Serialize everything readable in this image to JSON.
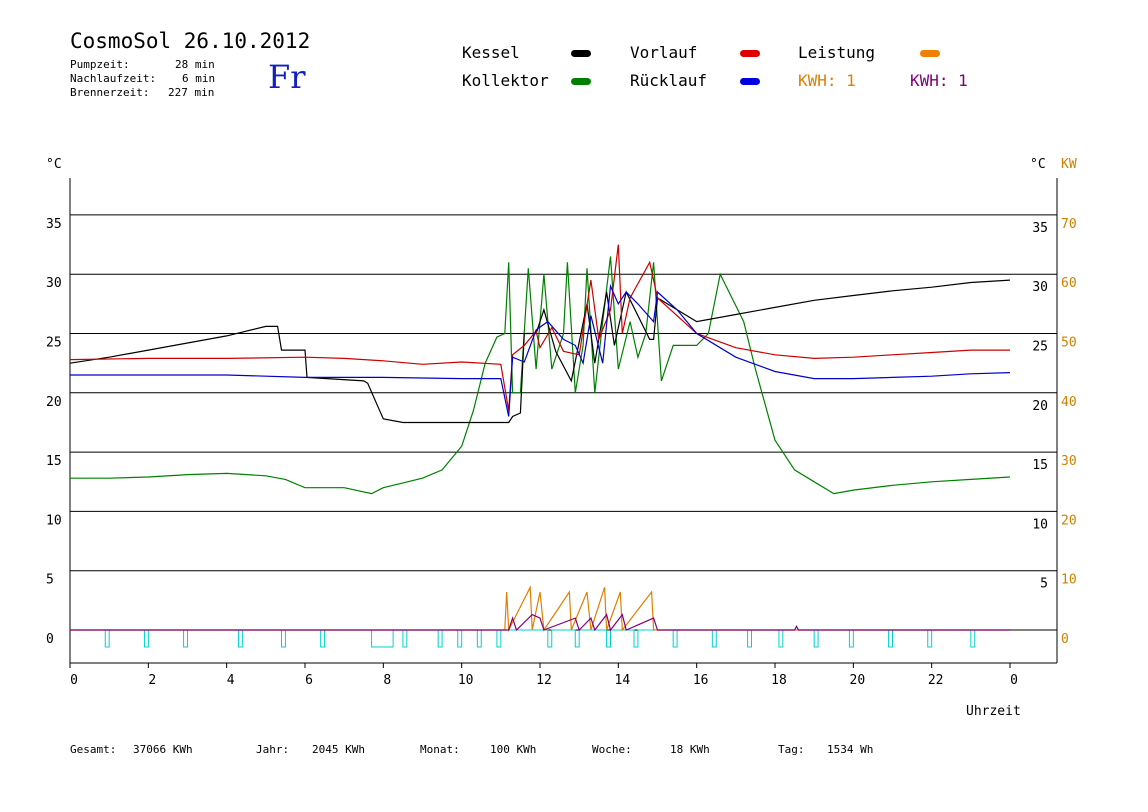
{
  "header": {
    "title": "CosmoSol 26.10.2012",
    "day": "Fr",
    "stats": [
      {
        "label": "Pumpzeit:",
        "value": "28 min"
      },
      {
        "label": "Nachlaufzeit:",
        "value": "6 min"
      },
      {
        "label": "Brennerzeit:",
        "value": "227 min"
      }
    ]
  },
  "legend": {
    "kessel": {
      "label": "Kessel",
      "color": "#000000"
    },
    "vorlauf": {
      "label": "Vorlauf",
      "color": "#e00000"
    },
    "leistung": {
      "label": "Leistung",
      "color": "#f08000"
    },
    "kollektor": {
      "label": "Kollektor",
      "color": "#008000"
    },
    "ruecklauf": {
      "label": "Rücklauf",
      "color": "#0000e0"
    },
    "kwh1": {
      "label": "KWH: 1",
      "color": "#e08000"
    },
    "kwh2": {
      "label": "KWH: 1",
      "color": "#800080"
    }
  },
  "footer": {
    "gesamt": {
      "label": "Gesamt:",
      "value": "37066 KWh"
    },
    "jahr": {
      "label": "Jahr:",
      "value": "2045 KWh"
    },
    "monat": {
      "label": "Monat:",
      "value": "100 KWh"
    },
    "woche": {
      "label": "Woche:",
      "value": "18 KWh"
    },
    "tag": {
      "label": "Tag:",
      "value": "1534 Wh"
    }
  },
  "chart_data": {
    "type": "line",
    "xlabel": "Uhrzeit",
    "ylabel_left": "°C",
    "ylabel_right": "°C",
    "ylabel_right2": "KW",
    "xlim": [
      0,
      24
    ],
    "ylim": [
      -2.5,
      38
    ],
    "grid": "horizontal",
    "x_ticks": [
      "0",
      "2",
      "4",
      "6",
      "8",
      "10",
      "12",
      "14",
      "16",
      "18",
      "20",
      "22",
      "0"
    ],
    "y_ticks_left": [
      0,
      5,
      10,
      15,
      20,
      25,
      30,
      35
    ],
    "y_ticks_right": [
      5,
      10,
      15,
      20,
      25,
      30,
      35
    ],
    "y_ticks_kw": [
      0,
      10,
      20,
      30,
      40,
      50,
      60,
      70
    ],
    "series": [
      {
        "name": "Kessel",
        "color": "#000000",
        "points": [
          [
            0,
            22.5
          ],
          [
            1,
            23
          ],
          [
            2,
            23.6
          ],
          [
            3,
            24.2
          ],
          [
            4,
            24.8
          ],
          [
            5,
            25.6
          ],
          [
            5.3,
            25.6
          ],
          [
            5.4,
            23.6
          ],
          [
            6,
            23.6
          ],
          [
            6.05,
            21.3
          ],
          [
            7.5,
            21
          ],
          [
            7.6,
            20.8
          ],
          [
            8,
            17.8
          ],
          [
            8.5,
            17.5
          ],
          [
            10,
            17.5
          ],
          [
            11.2,
            17.5
          ],
          [
            11.3,
            18
          ],
          [
            11.5,
            18.3
          ],
          [
            11.6,
            25
          ],
          [
            11.9,
            25
          ],
          [
            12.1,
            27
          ],
          [
            12.4,
            23.5
          ],
          [
            12.8,
            21
          ],
          [
            13.2,
            27.5
          ],
          [
            13.4,
            22.5
          ],
          [
            13.7,
            28.5
          ],
          [
            13.9,
            24
          ],
          [
            14.2,
            28.5
          ],
          [
            14.8,
            24.5
          ],
          [
            14.9,
            24.5
          ],
          [
            15,
            28
          ],
          [
            16,
            26
          ],
          [
            17,
            26.6
          ],
          [
            18,
            27.2
          ],
          [
            19,
            27.8
          ],
          [
            20,
            28.2
          ],
          [
            21,
            28.6
          ],
          [
            22,
            28.9
          ],
          [
            23,
            29.3
          ],
          [
            24,
            29.5
          ]
        ]
      },
      {
        "name": "Vorlauf",
        "color": "#cc0000",
        "points": [
          [
            0,
            22.8
          ],
          [
            2,
            22.9
          ],
          [
            4,
            22.9
          ],
          [
            6,
            23
          ],
          [
            7,
            22.9
          ],
          [
            8,
            22.7
          ],
          [
            9,
            22.4
          ],
          [
            10,
            22.6
          ],
          [
            11,
            22.4
          ],
          [
            11.2,
            18.5
          ],
          [
            11.3,
            23.2
          ],
          [
            11.6,
            24
          ],
          [
            11.9,
            25.2
          ],
          [
            12,
            23.8
          ],
          [
            12.3,
            25.5
          ],
          [
            12.6,
            23.5
          ],
          [
            13.0,
            23.2
          ],
          [
            13.3,
            29.5
          ],
          [
            13.5,
            24.5
          ],
          [
            13.8,
            27
          ],
          [
            14.0,
            32.5
          ],
          [
            14.1,
            25
          ],
          [
            14.3,
            28
          ],
          [
            14.8,
            31
          ],
          [
            15,
            28
          ],
          [
            16,
            25
          ],
          [
            17,
            23.8
          ],
          [
            18,
            23.2
          ],
          [
            19,
            22.9
          ],
          [
            20,
            23
          ],
          [
            21,
            23.2
          ],
          [
            22,
            23.4
          ],
          [
            23,
            23.6
          ],
          [
            24,
            23.6
          ]
        ]
      },
      {
        "name": "Rücklauf",
        "color": "#0000cc",
        "points": [
          [
            0,
            21.5
          ],
          [
            2,
            21.5
          ],
          [
            4,
            21.5
          ],
          [
            6,
            21.3
          ],
          [
            8,
            21.3
          ],
          [
            10,
            21.2
          ],
          [
            11,
            21.2
          ],
          [
            11.2,
            18
          ],
          [
            11.3,
            23
          ],
          [
            11.6,
            22.6
          ],
          [
            11.9,
            25.3
          ],
          [
            12.2,
            26
          ],
          [
            12.6,
            24.5
          ],
          [
            12.9,
            24
          ],
          [
            13.1,
            22.5
          ],
          [
            13.3,
            26.5
          ],
          [
            13.6,
            22.5
          ],
          [
            13.8,
            29
          ],
          [
            14,
            27.5
          ],
          [
            14.2,
            28.5
          ],
          [
            14.5,
            27.5
          ],
          [
            14.9,
            26
          ],
          [
            15,
            28.5
          ],
          [
            15.5,
            27
          ],
          [
            16,
            25
          ],
          [
            17,
            23
          ],
          [
            18,
            21.8
          ],
          [
            19,
            21.2
          ],
          [
            20,
            21.2
          ],
          [
            21,
            21.3
          ],
          [
            22,
            21.4
          ],
          [
            23,
            21.6
          ],
          [
            24,
            21.7
          ]
        ]
      },
      {
        "name": "Kollektor",
        "color": "#008000",
        "points": [
          [
            0,
            12.8
          ],
          [
            1,
            12.8
          ],
          [
            2,
            12.9
          ],
          [
            3,
            13.1
          ],
          [
            4,
            13.2
          ],
          [
            5,
            13
          ],
          [
            5.5,
            12.7
          ],
          [
            6,
            12
          ],
          [
            7,
            12
          ],
          [
            7.7,
            11.5
          ],
          [
            8,
            12
          ],
          [
            9,
            12.8
          ],
          [
            9.5,
            13.5
          ],
          [
            10,
            15.5
          ],
          [
            10.3,
            18.5
          ],
          [
            10.6,
            22.5
          ],
          [
            10.9,
            24.7
          ],
          [
            11.1,
            25
          ],
          [
            11.2,
            31
          ],
          [
            11.3,
            20
          ],
          [
            11.5,
            20
          ],
          [
            11.7,
            30.5
          ],
          [
            11.9,
            22
          ],
          [
            12.1,
            30
          ],
          [
            12.3,
            22
          ],
          [
            12.6,
            25
          ],
          [
            12.7,
            31
          ],
          [
            12.9,
            20
          ],
          [
            13.1,
            24
          ],
          [
            13.2,
            30.5
          ],
          [
            13.4,
            20
          ],
          [
            13.6,
            26
          ],
          [
            13.8,
            31.5
          ],
          [
            14,
            22
          ],
          [
            14.3,
            26
          ],
          [
            14.5,
            23
          ],
          [
            14.7,
            25
          ],
          [
            14.9,
            31
          ],
          [
            15.1,
            21
          ],
          [
            15.4,
            24
          ],
          [
            16,
            24
          ],
          [
            16.3,
            25
          ],
          [
            16.6,
            30
          ],
          [
            16.9,
            28
          ],
          [
            17.2,
            26
          ],
          [
            17.5,
            22
          ],
          [
            18,
            16
          ],
          [
            18.5,
            13.5
          ],
          [
            19,
            12.5
          ],
          [
            19.5,
            11.5
          ],
          [
            20,
            11.8
          ],
          [
            21,
            12.2
          ],
          [
            22,
            12.5
          ],
          [
            23,
            12.7
          ],
          [
            24,
            12.9
          ]
        ]
      },
      {
        "name": "Leistung",
        "color": "#e08000",
        "points": [
          [
            0,
            0
          ],
          [
            11.1,
            0
          ],
          [
            11.15,
            3.2
          ],
          [
            11.2,
            0
          ],
          [
            11.75,
            3.6
          ],
          [
            11.8,
            0
          ],
          [
            12.0,
            3.2
          ],
          [
            12.1,
            0
          ],
          [
            12.75,
            3.2
          ],
          [
            12.8,
            0
          ],
          [
            13.2,
            3.2
          ],
          [
            13.3,
            0
          ],
          [
            13.65,
            3.6
          ],
          [
            13.7,
            0
          ],
          [
            14.05,
            3.2
          ],
          [
            14.1,
            0
          ],
          [
            14.85,
            3.2
          ],
          [
            14.9,
            0
          ],
          [
            24,
            0
          ]
        ]
      },
      {
        "name": "KWH",
        "color": "#800080",
        "points": [
          [
            0,
            0
          ],
          [
            11.2,
            0
          ],
          [
            11.3,
            1
          ],
          [
            11.4,
            0
          ],
          [
            11.8,
            1.3
          ],
          [
            12,
            1
          ],
          [
            12.1,
            0
          ],
          [
            12.9,
            1
          ],
          [
            13.0,
            0
          ],
          [
            13.3,
            1
          ],
          [
            13.4,
            0
          ],
          [
            13.7,
            1.3
          ],
          [
            13.8,
            0
          ],
          [
            14.1,
            1.3
          ],
          [
            14.2,
            0
          ],
          [
            14.9,
            1
          ],
          [
            15.0,
            0
          ],
          [
            18.5,
            0
          ],
          [
            18.55,
            0.3
          ],
          [
            18.6,
            0
          ],
          [
            24,
            0
          ]
        ]
      }
    ],
    "pump_runs": [
      [
        0.9,
        1.0
      ],
      [
        1.9,
        2.0
      ],
      [
        2.9,
        3.0
      ],
      [
        4.3,
        4.4
      ],
      [
        5.4,
        5.5
      ],
      [
        6.4,
        6.5
      ],
      [
        7.7,
        8.25
      ],
      [
        8.5,
        8.6
      ],
      [
        9.4,
        9.5
      ],
      [
        9.9,
        10.0
      ],
      [
        10.4,
        10.5
      ],
      [
        10.9,
        11.0
      ],
      [
        12.2,
        12.3
      ],
      [
        12.9,
        13.0
      ],
      [
        13.7,
        13.8
      ],
      [
        14.4,
        14.5
      ],
      [
        15.4,
        15.5
      ],
      [
        16.4,
        16.5
      ],
      [
        17.3,
        17.4
      ],
      [
        18.1,
        18.2
      ],
      [
        19,
        19.1
      ],
      [
        19.9,
        20.0
      ],
      [
        20.9,
        21.0
      ],
      [
        21.9,
        22.0
      ],
      [
        23.0,
        23.1
      ]
    ]
  }
}
